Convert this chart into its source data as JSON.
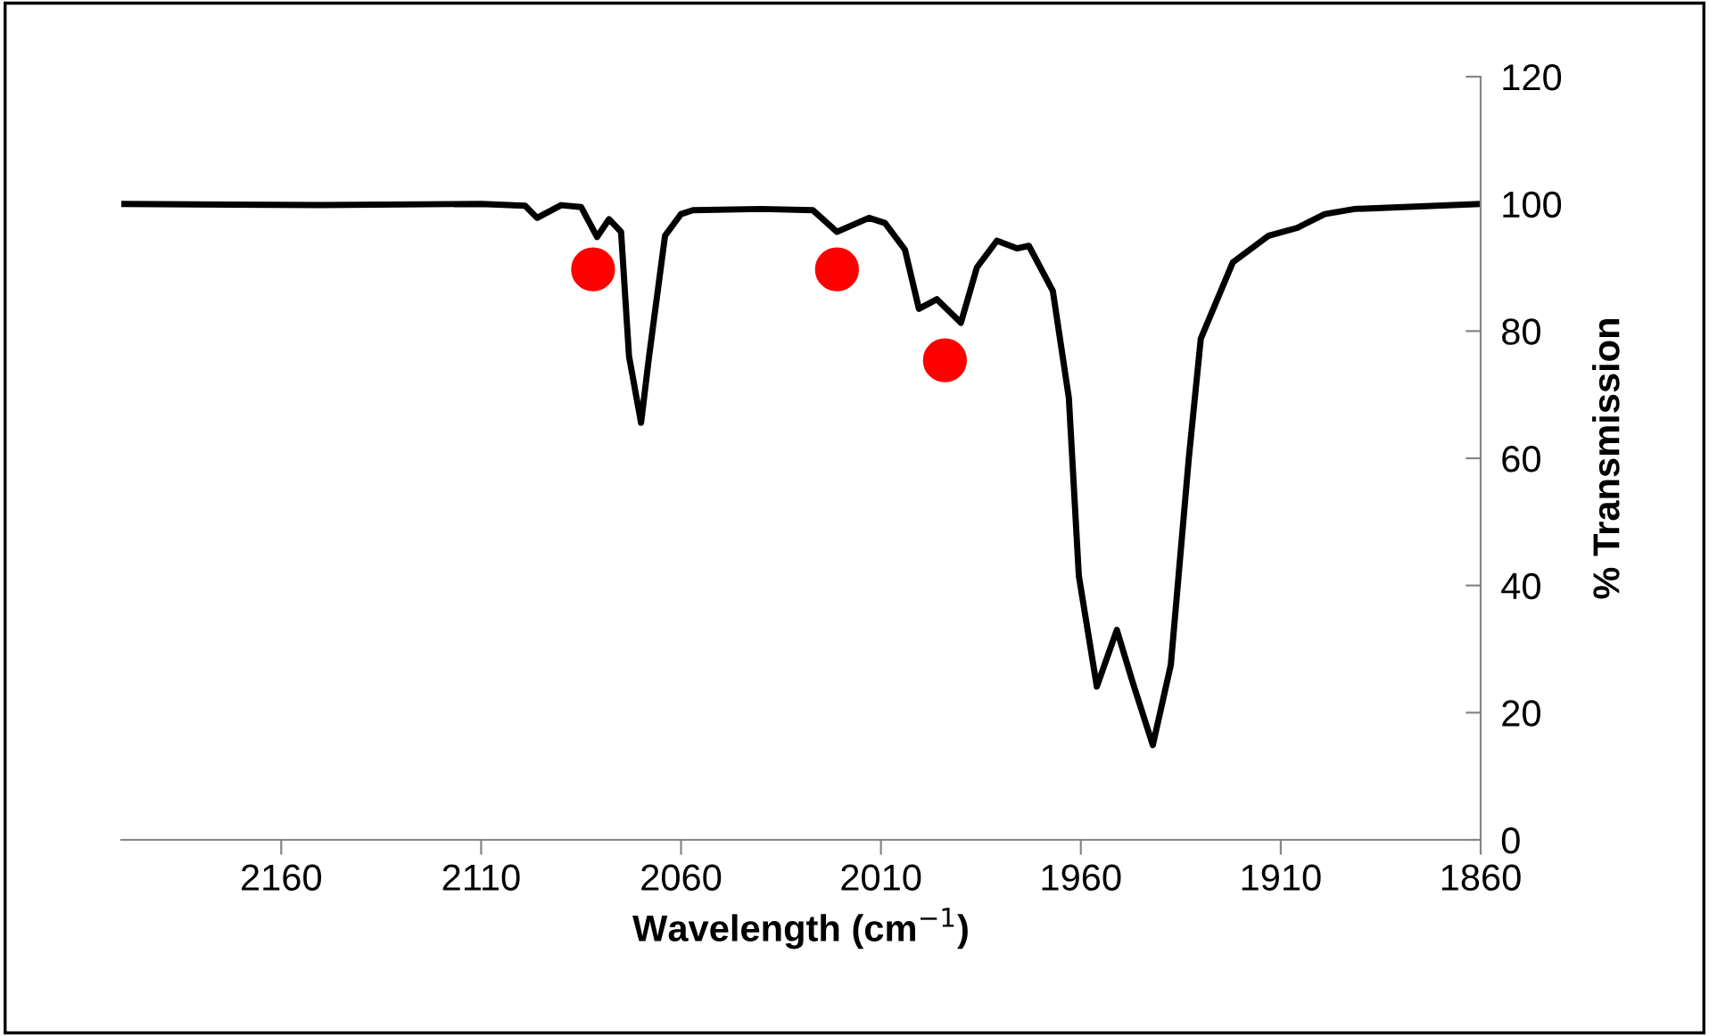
{
  "chart_data": {
    "type": "line",
    "xlabel": "Wavelength (cm$^{−1}$)",
    "ylabel": "% Transmission",
    "xlim": [
      2200,
      1860
    ],
    "xticks": [
      2160,
      2110,
      2060,
      2010,
      1960,
      1910,
      1860
    ],
    "ylim": [
      0,
      120
    ],
    "yticks": [
      0,
      20,
      40,
      60,
      80,
      100,
      120
    ],
    "grid": false,
    "legend": false,
    "series": [
      {
        "color": "#000000",
        "x": [
          2200,
          2150,
          2110,
          2099,
          2096,
          2090,
          2085,
          2081,
          2078,
          2075,
          2073,
          2070,
          2068,
          2064,
          2060,
          2057,
          2040,
          2027,
          2021,
          2013,
          2009,
          2004,
          2000.5,
          1996,
          1990,
          1986,
          1981,
          1976,
          1973,
          1967,
          1963,
          1960.5,
          1956,
          1951,
          1947,
          1942,
          1937.5,
          1933,
          1930,
          1922,
          1913,
          1906,
          1899,
          1891.5,
          1860
        ],
        "values": [
          100,
          99.8,
          100,
          99.7,
          97.8,
          99.8,
          99.5,
          94.8,
          97.6,
          95.6,
          76,
          65.6,
          76,
          95,
          98.4,
          99,
          99.2,
          99,
          95.6,
          97.8,
          97,
          92.8,
          83.5,
          85,
          81.3,
          90,
          94.2,
          93,
          93.4,
          86.3,
          69.5,
          41.5,
          24.1,
          33,
          24.7,
          14.9,
          27.5,
          60,
          78.8,
          90.8,
          95,
          96.2,
          98.4,
          99.2,
          100
        ]
      },
      {
        "type": "scatter",
        "color": "#ff0000",
        "marker": "circle",
        "x": [
          2082,
          2021,
          1994
        ],
        "values": [
          89.7,
          89.7,
          75.4
        ]
      }
    ]
  }
}
